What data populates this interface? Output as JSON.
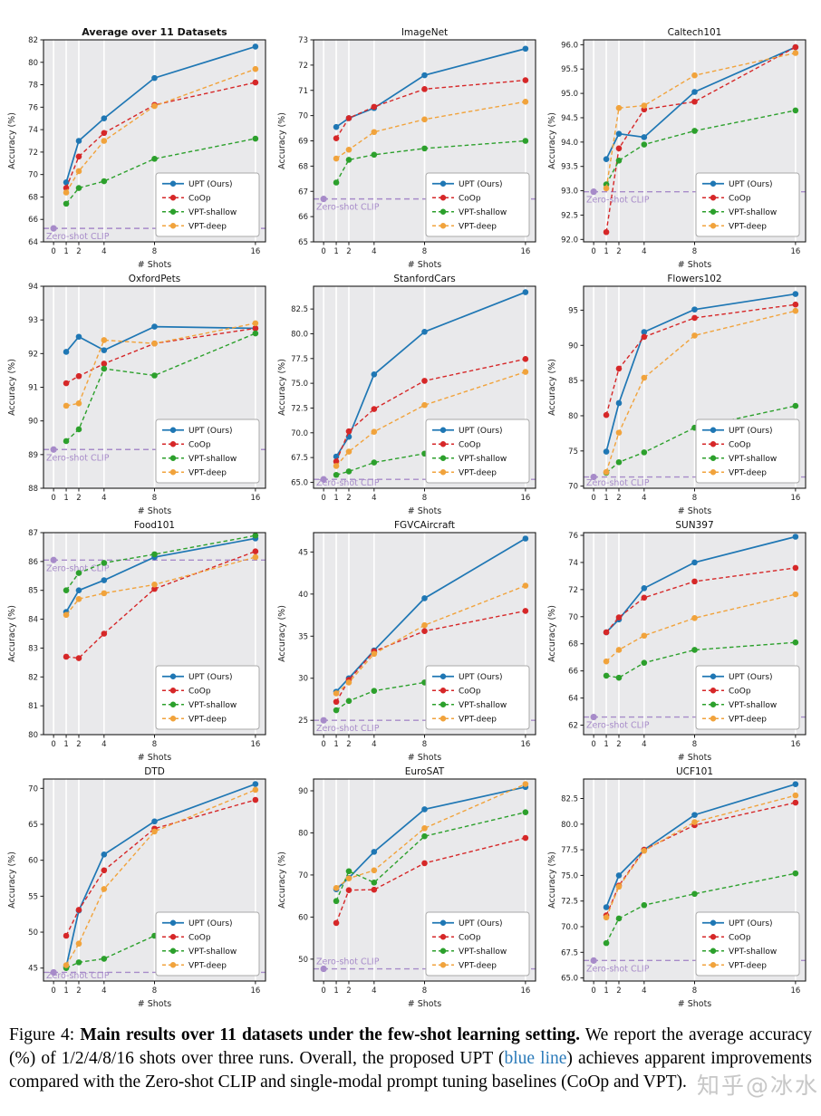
{
  "figure": {
    "xlabel": "# Shots",
    "ylabel": "Accuracy (%)",
    "x": [
      1,
      2,
      4,
      8,
      16
    ],
    "xticks": [
      0,
      1,
      2,
      4,
      8,
      16
    ],
    "zero_label": "Zero-shot CLIP",
    "legend": [
      {
        "key": "upt",
        "label": "UPT (Ours)",
        "dash": false
      },
      {
        "key": "coop",
        "label": "CoOp",
        "dash": true
      },
      {
        "key": "vpt_shallow",
        "label": "VPT-shallow",
        "dash": true
      },
      {
        "key": "vpt_deep",
        "label": "VPT-deep",
        "dash": true
      }
    ],
    "colors": {
      "upt": "#1f77b4",
      "coop": "#d62728",
      "vpt_shallow": "#2ca02c",
      "vpt_deep": "#f1a33c",
      "zero": "#a78bc9",
      "plot_bg": "#e9e9eb",
      "grid": "#ffffff",
      "axis": "#1a1a1a"
    }
  },
  "chart_data": [
    {
      "type": "line",
      "title": "Average over 11 Datasets",
      "bold": true,
      "ylim": [
        64,
        82
      ],
      "yticks": [
        "64",
        "66",
        "68",
        "70",
        "72",
        "74",
        "76",
        "78",
        "80",
        "82"
      ],
      "zero_shot": 65.2,
      "zero_label_above": false,
      "series": {
        "upt": [
          69.3,
          73.0,
          75.0,
          78.6,
          81.4
        ],
        "coop": [
          68.8,
          71.6,
          73.7,
          76.2,
          78.2
        ],
        "vpt_shallow": [
          67.4,
          68.8,
          69.4,
          71.4,
          73.2
        ],
        "vpt_deep": [
          68.4,
          70.3,
          73.0,
          76.1,
          79.4
        ]
      }
    },
    {
      "type": "line",
      "title": "ImageNet",
      "bold": false,
      "ylim": [
        65,
        73
      ],
      "yticks": [
        "65",
        "66",
        "67",
        "68",
        "69",
        "70",
        "71",
        "72",
        "73"
      ],
      "zero_shot": 66.7,
      "zero_label_above": false,
      "series": {
        "upt": [
          69.55,
          69.9,
          70.3,
          71.6,
          72.65
        ],
        "coop": [
          69.1,
          69.9,
          70.35,
          71.05,
          71.4
        ],
        "vpt_shallow": [
          67.35,
          68.25,
          68.45,
          68.7,
          69.0
        ],
        "vpt_deep": [
          68.3,
          68.65,
          69.35,
          69.85,
          70.55
        ]
      }
    },
    {
      "type": "line",
      "title": "Caltech101",
      "bold": false,
      "ylim": [
        91.95,
        96.1
      ],
      "yticks": [
        "92.0",
        "92.5",
        "93.0",
        "93.5",
        "94.0",
        "94.5",
        "95.0",
        "95.5",
        "96.0"
      ],
      "zero_shot": 92.98,
      "zero_label_above": false,
      "series": {
        "upt": [
          93.65,
          94.17,
          94.1,
          95.03,
          95.95
        ],
        "coop": [
          92.15,
          93.87,
          94.67,
          94.83,
          95.95
        ],
        "vpt_shallow": [
          93.13,
          93.62,
          93.95,
          94.23,
          94.65
        ],
        "vpt_deep": [
          93.05,
          94.7,
          94.75,
          95.37,
          95.83
        ]
      }
    },
    {
      "type": "line",
      "title": "OxfordPets",
      "bold": false,
      "ylim": [
        88,
        94
      ],
      "yticks": [
        "88",
        "89",
        "90",
        "91",
        "92",
        "93",
        "94"
      ],
      "zero_shot": 89.15,
      "zero_label_above": false,
      "series": {
        "upt": [
          92.05,
          92.5,
          92.1,
          92.8,
          92.75
        ],
        "coop": [
          91.12,
          91.33,
          91.7,
          92.3,
          92.75
        ],
        "vpt_shallow": [
          89.4,
          89.75,
          91.55,
          91.35,
          92.6
        ],
        "vpt_deep": [
          90.45,
          90.52,
          92.4,
          92.3,
          92.9
        ]
      }
    },
    {
      "type": "line",
      "title": "StanfordCars",
      "bold": false,
      "ylim": [
        64.4,
        84.8
      ],
      "yticks": [
        "65.0",
        "67.5",
        "70.0",
        "72.5",
        "75.0",
        "77.5",
        "80.0",
        "82.5"
      ],
      "zero_shot": 65.3,
      "zero_label_above": false,
      "series": {
        "upt": [
          67.6,
          69.6,
          75.9,
          80.2,
          84.2
        ],
        "coop": [
          67.1,
          70.15,
          72.4,
          75.25,
          77.45
        ],
        "vpt_shallow": [
          65.75,
          66.1,
          67.0,
          67.9,
          69.2
        ],
        "vpt_deep": [
          66.65,
          68.1,
          70.1,
          72.8,
          76.15
        ]
      }
    },
    {
      "type": "line",
      "title": "Flowers102",
      "bold": false,
      "ylim": [
        69.7,
        98.4
      ],
      "yticks": [
        "70",
        "75",
        "80",
        "85",
        "90",
        "95"
      ],
      "zero_shot": 71.3,
      "zero_label_above": false,
      "series": {
        "upt": [
          74.9,
          81.8,
          91.9,
          95.1,
          97.3
        ],
        "coop": [
          80.1,
          86.7,
          91.2,
          93.9,
          95.8
        ],
        "vpt_shallow": [
          71.9,
          73.4,
          74.8,
          78.3,
          81.4
        ],
        "vpt_deep": [
          72.0,
          77.6,
          85.4,
          91.4,
          94.9
        ]
      }
    },
    {
      "type": "line",
      "title": "Food101",
      "bold": false,
      "ylim": [
        80,
        87
      ],
      "yticks": [
        "80",
        "81",
        "82",
        "83",
        "84",
        "85",
        "86",
        "87"
      ],
      "zero_shot": 86.05,
      "zero_label_above": false,
      "series": {
        "upt": [
          84.25,
          85.0,
          85.35,
          86.15,
          86.8
        ],
        "coop": [
          82.7,
          82.65,
          83.5,
          85.05,
          86.35
        ],
        "vpt_shallow": [
          85.0,
          85.6,
          85.95,
          86.25,
          86.9
        ],
        "vpt_deep": [
          84.15,
          84.7,
          84.9,
          85.2,
          86.15
        ]
      }
    },
    {
      "type": "line",
      "title": "FGVCAircraft",
      "bold": false,
      "ylim": [
        23.3,
        47.3
      ],
      "yticks": [
        "25",
        "30",
        "35",
        "40",
        "45"
      ],
      "zero_shot": 25.0,
      "zero_label_above": false,
      "series": {
        "upt": [
          28.4,
          30.0,
          33.3,
          39.5,
          46.6
        ],
        "coop": [
          27.2,
          29.8,
          33.2,
          35.6,
          38.0
        ],
        "vpt_shallow": [
          26.2,
          27.3,
          28.5,
          29.5,
          30.9
        ],
        "vpt_deep": [
          28.2,
          29.5,
          32.9,
          36.3,
          41.0
        ]
      }
    },
    {
      "type": "line",
      "title": "SUN397",
      "bold": false,
      "ylim": [
        61.3,
        76.2
      ],
      "yticks": [
        "62",
        "64",
        "66",
        "68",
        "70",
        "72",
        "74",
        "76"
      ],
      "zero_shot": 62.6,
      "zero_label_above": false,
      "series": {
        "upt": [
          68.85,
          69.8,
          72.1,
          74.0,
          75.9
        ],
        "coop": [
          68.85,
          69.95,
          71.4,
          72.6,
          73.6
        ],
        "vpt_shallow": [
          65.65,
          65.5,
          66.6,
          67.55,
          68.1
        ],
        "vpt_deep": [
          66.7,
          67.55,
          68.6,
          69.9,
          71.65
        ]
      }
    },
    {
      "type": "line",
      "title": "DTD",
      "bold": false,
      "ylim": [
        43.2,
        71.3
      ],
      "yticks": [
        "45",
        "50",
        "55",
        "60",
        "65",
        "70"
      ],
      "zero_shot": 44.4,
      "zero_label_above": false,
      "series": {
        "upt": [
          45.2,
          53.0,
          60.8,
          65.4,
          70.6
        ],
        "coop": [
          49.5,
          53.1,
          58.6,
          64.4,
          68.4
        ],
        "vpt_shallow": [
          45.0,
          45.8,
          46.3,
          49.5,
          52.3
        ],
        "vpt_deep": [
          45.4,
          48.4,
          56.0,
          64.0,
          69.8
        ]
      }
    },
    {
      "type": "line",
      "title": "EuroSAT",
      "bold": false,
      "ylim": [
        44.8,
        92.8
      ],
      "yticks": [
        "50",
        "60",
        "70",
        "80",
        "90"
      ],
      "zero_shot": 47.7,
      "zero_label_above": true,
      "series": {
        "upt": [
          66.6,
          69.3,
          75.5,
          85.6,
          90.9
        ],
        "coop": [
          58.6,
          66.4,
          66.5,
          72.8,
          78.8
        ],
        "vpt_shallow": [
          63.8,
          70.9,
          68.2,
          79.2,
          84.9
        ],
        "vpt_deep": [
          66.9,
          69.2,
          71.1,
          81.1,
          91.6
        ]
      }
    },
    {
      "type": "line",
      "title": "UCF101",
      "bold": false,
      "ylim": [
        64.7,
        84.4
      ],
      "yticks": [
        "65.0",
        "67.5",
        "70.0",
        "72.5",
        "75.0",
        "77.5",
        "80.0",
        "82.5"
      ],
      "zero_shot": 66.7,
      "zero_label_above": false,
      "series": {
        "upt": [
          71.9,
          75.0,
          77.5,
          80.9,
          83.9
        ],
        "coop": [
          71.1,
          74.0,
          77.5,
          79.9,
          82.1
        ],
        "vpt_shallow": [
          68.4,
          70.8,
          72.1,
          73.2,
          75.2
        ],
        "vpt_deep": [
          70.9,
          73.9,
          77.4,
          80.2,
          82.8
        ]
      }
    }
  ],
  "caption": {
    "prefix": "Figure 4: ",
    "bold_text": "Main results over 11 datasets under the few-shot learning setting.",
    "body1": " We report the average accuracy (%) of 1/2/4/8/16 shots over three runs. Overall, the proposed UPT (",
    "blue_text": "blue line",
    "body2": ") achieves apparent improvements compared with the Zero-shot CLIP and single-modal prompt tuning baselines (CoOp and VPT).",
    "watermark": "知乎@冰水"
  }
}
